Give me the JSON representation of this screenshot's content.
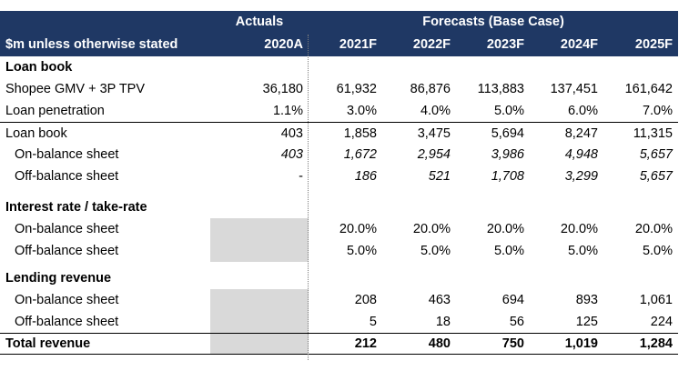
{
  "header": {
    "actuals_label": "Actuals",
    "forecasts_label": "Forecasts (Base Case)",
    "units_label": "$m unless otherwise stated",
    "years": [
      "2020A",
      "2021F",
      "2022F",
      "2023F",
      "2024F",
      "2025F"
    ]
  },
  "sections": {
    "loan_book_title": "Loan book",
    "interest_title": "Interest rate / take-rate",
    "lending_title": "Lending revenue"
  },
  "rows": {
    "gmv": {
      "label": "Shopee GMV + 3P TPV",
      "values": [
        "36,180",
        "61,932",
        "86,876",
        "113,883",
        "137,451",
        "161,642"
      ]
    },
    "penetration": {
      "label": "Loan penetration",
      "values": [
        "1.1%",
        "3.0%",
        "4.0%",
        "5.0%",
        "6.0%",
        "7.0%"
      ]
    },
    "loan_book": {
      "label": "Loan book",
      "values": [
        "403",
        "1,858",
        "3,475",
        "5,694",
        "8,247",
        "11,315"
      ]
    },
    "on_bs": {
      "label": "On-balance sheet",
      "values": [
        "403",
        "1,672",
        "2,954",
        "3,986",
        "4,948",
        "5,657"
      ]
    },
    "off_bs": {
      "label": "Off-balance sheet",
      "values": [
        "-",
        "186",
        "521",
        "1,708",
        "3,299",
        "5,657"
      ]
    },
    "rate_on": {
      "label": "On-balance sheet",
      "values": [
        "",
        "20.0%",
        "20.0%",
        "20.0%",
        "20.0%",
        "20.0%"
      ]
    },
    "rate_off": {
      "label": "Off-balance sheet",
      "values": [
        "",
        "5.0%",
        "5.0%",
        "5.0%",
        "5.0%",
        "5.0%"
      ]
    },
    "rev_on": {
      "label": "On-balance sheet",
      "values": [
        "",
        "208",
        "463",
        "694",
        "893",
        "1,061"
      ]
    },
    "rev_off": {
      "label": "Off-balance sheet",
      "values": [
        "",
        "5",
        "18",
        "56",
        "125",
        "224"
      ]
    },
    "total": {
      "label": "Total revenue",
      "values": [
        "",
        "212",
        "480",
        "750",
        "1,019",
        "1,284"
      ]
    }
  },
  "colors": {
    "header_bg": "#1f3864",
    "shaded_cell": "#d9d9d9"
  }
}
